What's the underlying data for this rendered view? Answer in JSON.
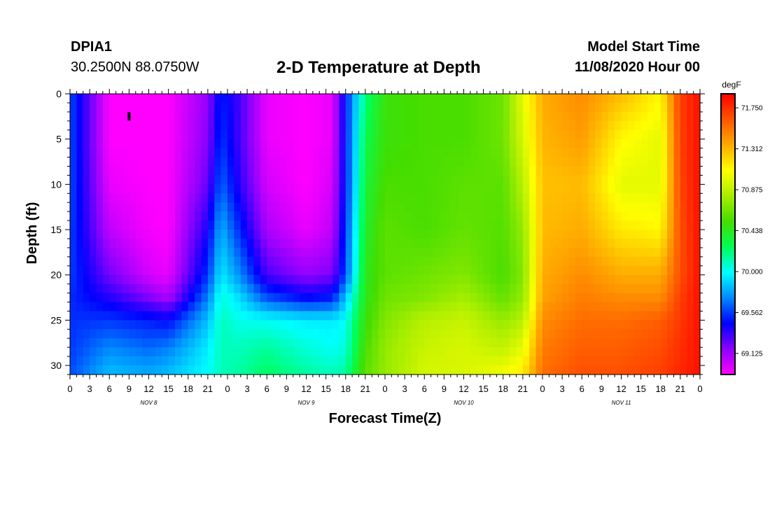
{
  "header": {
    "station": "DPIA1",
    "coordinates": "30.2500N 88.0750W",
    "title": "2-D Temperature at Depth",
    "model_start_label": "Model Start Time",
    "model_start_value": "11/08/2020 Hour 00"
  },
  "chart_data": {
    "type": "heatmap",
    "title": "2-D Temperature at Depth",
    "xlabel": "Forecast Time(Z)",
    "ylabel": "Depth (ft)",
    "x_unit": "hours from model start",
    "xlim": [
      0,
      96
    ],
    "ylim": [
      0,
      31
    ],
    "y_inverted": true,
    "x_tick_values": [
      0,
      3,
      6,
      9,
      12,
      15,
      18,
      21,
      24,
      27,
      30,
      33,
      36,
      39,
      42,
      45,
      48,
      51,
      54,
      57,
      60,
      63,
      66,
      69,
      72,
      75,
      78,
      81,
      84,
      87,
      90,
      93,
      96
    ],
    "x_tick_labels": [
      "0",
      "3",
      "6",
      "9",
      "12",
      "15",
      "18",
      "21",
      "0",
      "3",
      "6",
      "9",
      "12",
      "15",
      "18",
      "21",
      "0",
      "3",
      "6",
      "9",
      "12",
      "15",
      "18",
      "21",
      "0",
      "3",
      "6",
      "9",
      "12",
      "15",
      "18",
      "21",
      "0"
    ],
    "date_labels": [
      {
        "hour": 12,
        "text": "NOV 8"
      },
      {
        "hour": 36,
        "text": "NOV 9"
      },
      {
        "hour": 60,
        "text": "NOV 10"
      },
      {
        "hour": 84,
        "text": "NOV 11"
      }
    ],
    "y_ticks": [
      0,
      5,
      10,
      15,
      20,
      25,
      30
    ],
    "y_tick_labels": [
      "0",
      "5",
      "10",
      "15",
      "20",
      "25",
      "30"
    ],
    "colorbar": {
      "unit": "degF",
      "vmin": 68.9,
      "vmax": 71.9,
      "tick_values": [
        69.125,
        69.562,
        70.0,
        70.438,
        70.875,
        71.312,
        71.75
      ],
      "tick_labels": [
        "69.125",
        "69.562",
        "70.000",
        "70.438",
        "70.875",
        "71.312",
        "71.750"
      ],
      "colors": [
        "#ff00ff",
        "#8c00ff",
        "#0000ff",
        "#0088ff",
        "#00ffff",
        "#00ff55",
        "#44dd00",
        "#aaee00",
        "#ffff00",
        "#ffaa00",
        "#ff5500",
        "#ff0000"
      ]
    },
    "time_hours": [
      0,
      6,
      12,
      15,
      21,
      23,
      26,
      30,
      36,
      40,
      42,
      45,
      48,
      54,
      60,
      66,
      69,
      72,
      78,
      84,
      90,
      93,
      96
    ],
    "depths_ft": [
      0,
      5,
      10,
      15,
      20,
      22.5,
      25,
      28,
      31
    ],
    "values": [
      [
        69.6,
        69.6,
        69.6,
        69.58,
        69.57,
        69.53,
        69.54,
        69.55,
        69.6
      ],
      [
        68.9,
        68.9,
        68.95,
        69.05,
        69.22,
        69.38,
        69.55,
        69.72,
        69.85
      ],
      [
        68.9,
        68.9,
        68.9,
        68.92,
        69.0,
        69.2,
        69.5,
        69.65,
        69.8
      ],
      [
        68.9,
        68.9,
        68.9,
        68.9,
        68.95,
        69.1,
        69.45,
        69.7,
        69.85
      ],
      [
        69.15,
        69.18,
        69.25,
        69.4,
        69.55,
        69.7,
        69.85,
        69.95,
        70.0
      ],
      [
        69.5,
        69.55,
        69.65,
        69.82,
        69.95,
        70.05,
        70.1,
        70.1,
        70.1
      ],
      [
        69.3,
        69.3,
        69.35,
        69.5,
        69.72,
        69.9,
        70.02,
        70.1,
        70.15
      ],
      [
        68.95,
        68.95,
        69.0,
        69.1,
        69.3,
        69.6,
        70.0,
        70.15,
        70.25
      ],
      [
        68.9,
        68.9,
        68.9,
        68.95,
        69.15,
        69.45,
        69.95,
        70.05,
        70.15
      ],
      [
        68.95,
        68.95,
        69.0,
        69.05,
        69.2,
        69.5,
        69.95,
        70.0,
        70.1
      ],
      [
        69.5,
        69.5,
        69.5,
        69.55,
        69.6,
        69.85,
        70.0,
        70.05,
        70.15
      ],
      [
        70.2,
        70.3,
        70.35,
        70.4,
        70.45,
        70.45,
        70.5,
        70.55,
        70.6
      ],
      [
        70.5,
        70.5,
        70.55,
        70.6,
        70.6,
        70.65,
        70.7,
        70.75,
        70.75
      ],
      [
        70.55,
        70.55,
        70.55,
        70.55,
        70.65,
        70.7,
        70.85,
        70.9,
        70.95
      ],
      [
        70.55,
        70.55,
        70.6,
        70.62,
        70.7,
        70.8,
        70.9,
        70.95,
        70.95
      ],
      [
        70.65,
        70.65,
        70.6,
        70.58,
        70.55,
        70.62,
        70.75,
        70.88,
        71.05
      ],
      [
        71.0,
        70.95,
        70.85,
        70.75,
        70.7,
        70.75,
        70.85,
        71.0,
        71.15
      ],
      [
        71.35,
        71.32,
        71.28,
        71.3,
        71.35,
        71.38,
        71.45,
        71.5,
        71.55
      ],
      [
        71.45,
        71.4,
        71.3,
        71.35,
        71.45,
        71.5,
        71.55,
        71.6,
        71.65
      ],
      [
        71.3,
        71.1,
        71.0,
        71.15,
        71.35,
        71.45,
        71.55,
        71.6,
        71.65
      ],
      [
        71.1,
        71.0,
        71.0,
        71.1,
        71.35,
        71.45,
        71.6,
        71.65,
        71.7
      ],
      [
        71.7,
        71.7,
        71.68,
        71.65,
        71.65,
        71.7,
        71.72,
        71.75,
        71.78
      ],
      [
        71.85,
        71.85,
        71.85,
        71.85,
        71.85,
        71.85,
        71.85,
        71.85,
        71.85
      ]
    ],
    "marker": {
      "hour": 9,
      "depth_ft": 2.5,
      "symbol": "vertical-bar"
    }
  }
}
